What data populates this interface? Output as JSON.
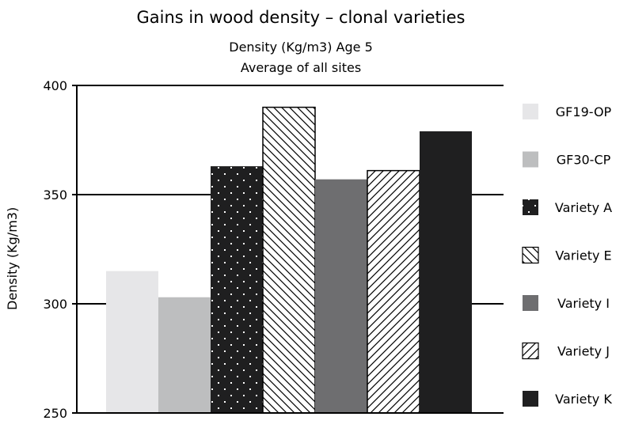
{
  "chart_data": {
    "type": "bar",
    "title": "Gains in wood density – clonal varieties",
    "subtitle_lines": [
      "Density (Kg/m3) Age 5",
      "Average of all sites"
    ],
    "xlabel": "",
    "ylabel": "Density (Kg/m3)",
    "ylim": [
      250,
      400
    ],
    "yticks": [
      250,
      300,
      350,
      400
    ],
    "grid": "horizontal at 300 and 350",
    "legend_position": "right",
    "categories": [
      "GF19-OP",
      "GF30-CP",
      "Variety A",
      "Variety E",
      "Variety I",
      "Variety J",
      "Variety K"
    ],
    "values": [
      315,
      303,
      363,
      390,
      357,
      361,
      379
    ],
    "styles": [
      {
        "name": "GF19-OP",
        "fill": "#e6e6e8",
        "pattern": "solid"
      },
      {
        "name": "GF30-CP",
        "fill": "#bdbebf",
        "pattern": "solid"
      },
      {
        "name": "Variety A",
        "fill": "#1f1f20",
        "pattern": "dots"
      },
      {
        "name": "Variety E",
        "fill": "#ffffff",
        "pattern": "diag-down"
      },
      {
        "name": "Variety I",
        "fill": "#6e6e70",
        "pattern": "solid"
      },
      {
        "name": "Variety J",
        "fill": "#ffffff",
        "pattern": "diag-up"
      },
      {
        "name": "Variety K",
        "fill": "#1f1f20",
        "pattern": "solid"
      }
    ]
  }
}
